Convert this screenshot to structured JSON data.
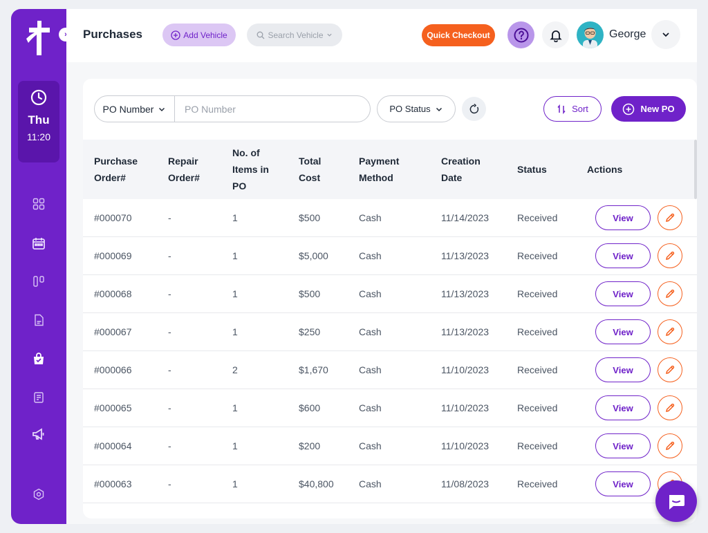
{
  "sidebar": {
    "clock": {
      "day": "Thu",
      "time": "11:20"
    },
    "nav_items": [
      {
        "icon": "dashboard-icon"
      },
      {
        "icon": "calendar-icon"
      },
      {
        "icon": "board-icon"
      },
      {
        "icon": "document-icon"
      },
      {
        "icon": "shopping-bag-icon",
        "active": true
      },
      {
        "icon": "invoice-icon"
      },
      {
        "icon": "megaphone-icon"
      },
      {
        "icon": "settings-icon"
      }
    ]
  },
  "header": {
    "title": "Purchases",
    "add_vehicle_label": "Add Vehicle",
    "search_vehicle_placeholder": "Search Vehicle",
    "quick_checkout_label": "Quick Checkout",
    "user_name": "George"
  },
  "filters": {
    "field_select": "PO Number",
    "field_placeholder": "PO Number",
    "status_select": "PO Status",
    "sort_label": "Sort",
    "new_po_label": "New PO"
  },
  "table": {
    "headers": {
      "po_line1": "Purchase",
      "po_line2": "Order#",
      "ro_line1": "Repair",
      "ro_line2": "Order#",
      "items_line1": "No. of",
      "items_line2": "Items in",
      "items_line3": "PO",
      "cost_line1": "Total",
      "cost_line2": "Cost",
      "pay_line1": "Payment",
      "pay_line2": "Method",
      "date_line1": "Creation",
      "date_line2": "Date",
      "status": "Status",
      "actions": "Actions"
    },
    "view_label": "View",
    "rows": [
      {
        "po": "#000070",
        "ro": "-",
        "items": "1",
        "cost": "$500",
        "payment": "Cash",
        "date": "11/14/2023",
        "status": "Received"
      },
      {
        "po": "#000069",
        "ro": "-",
        "items": "1",
        "cost": "$5,000",
        "payment": "Cash",
        "date": "11/13/2023",
        "status": "Received"
      },
      {
        "po": "#000068",
        "ro": "-",
        "items": "1",
        "cost": "$500",
        "payment": "Cash",
        "date": "11/13/2023",
        "status": "Received"
      },
      {
        "po": "#000067",
        "ro": "-",
        "items": "1",
        "cost": "$250",
        "payment": "Cash",
        "date": "11/13/2023",
        "status": "Received"
      },
      {
        "po": "#000066",
        "ro": "-",
        "items": "2",
        "cost": "$1,670",
        "payment": "Cash",
        "date": "11/10/2023",
        "status": "Received"
      },
      {
        "po": "#000065",
        "ro": "-",
        "items": "1",
        "cost": "$600",
        "payment": "Cash",
        "date": "11/10/2023",
        "status": "Received"
      },
      {
        "po": "#000064",
        "ro": "-",
        "items": "1",
        "cost": "$200",
        "payment": "Cash",
        "date": "11/10/2023",
        "status": "Received"
      },
      {
        "po": "#000063",
        "ro": "-",
        "items": "1",
        "cost": "$40,800",
        "payment": "Cash",
        "date": "11/08/2023",
        "status": "Received"
      }
    ]
  },
  "colors": {
    "primary": "#6f22c9",
    "accent_orange": "#f5601e",
    "background": "#eef0f4"
  }
}
